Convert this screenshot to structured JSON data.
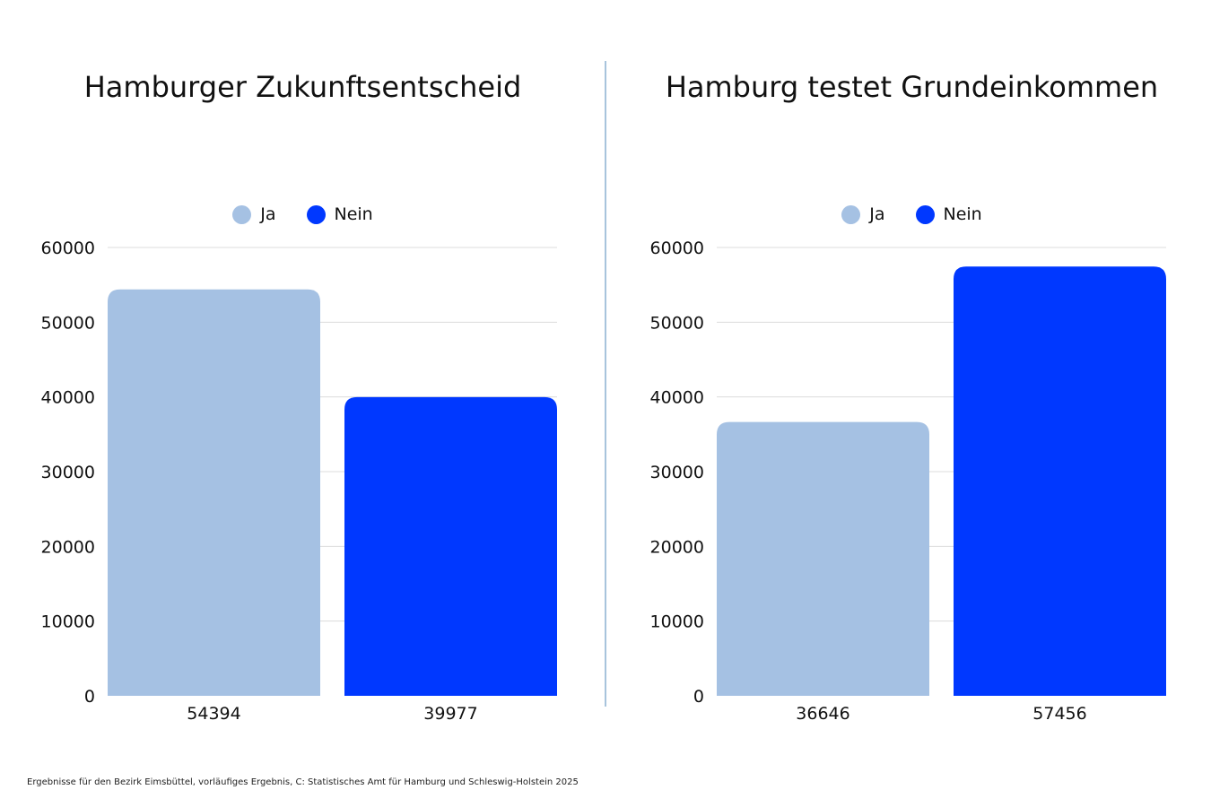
{
  "chart_data": [
    {
      "type": "bar",
      "title": "Hamburger Zukunftsentscheid",
      "legend": [
        "Ja",
        "Nein"
      ],
      "categories": [
        "54394",
        "39977"
      ],
      "values": [
        54394,
        39977
      ],
      "colors": [
        "#a5c1e3",
        "#0038ff"
      ],
      "ylim": [
        0,
        60000
      ],
      "yticks": [
        0,
        10000,
        20000,
        30000,
        40000,
        50000,
        60000
      ],
      "grid": true,
      "legend_position": "top-center"
    },
    {
      "type": "bar",
      "title": "Hamburg testet Grundeinkommen",
      "legend": [
        "Ja",
        "Nein"
      ],
      "categories": [
        "36646",
        "57456"
      ],
      "values": [
        36646,
        57456
      ],
      "colors": [
        "#a5c1e3",
        "#0038ff"
      ],
      "ylim": [
        0,
        60000
      ],
      "yticks": [
        0,
        10000,
        20000,
        30000,
        40000,
        50000,
        60000
      ],
      "grid": true,
      "legend_position": "top-center"
    }
  ],
  "footer": "Ergebnisse für den Bezirk Eimsbüttel, vorläufiges Ergebnis, C: Statistisches Amt für Hamburg und Schleswig-Holstein 2025"
}
